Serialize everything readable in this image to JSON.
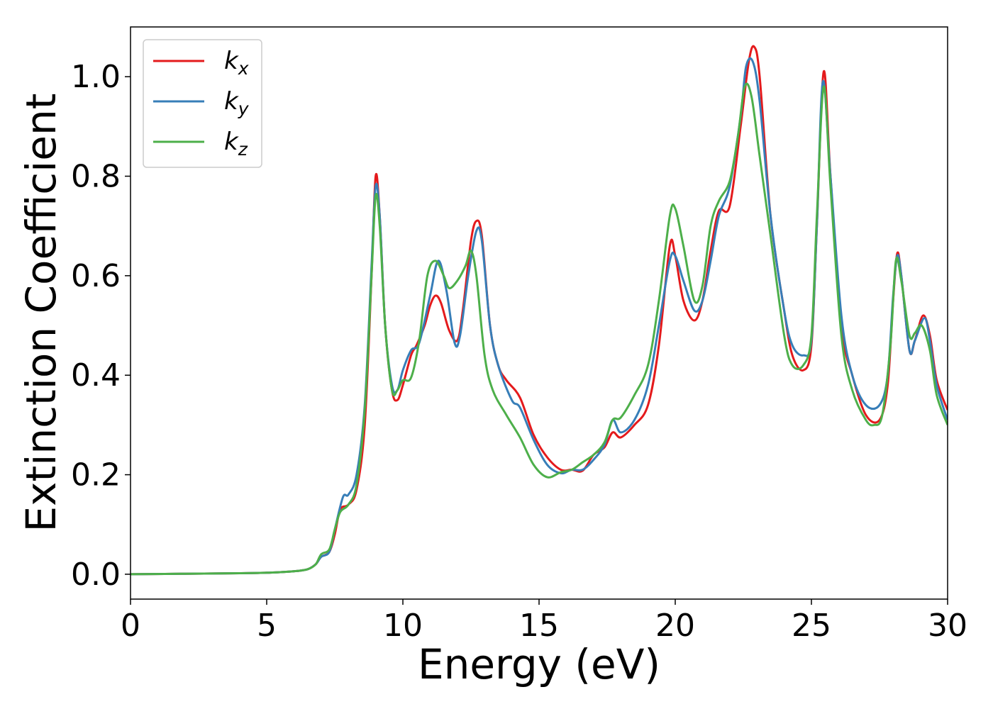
{
  "chart_data": {
    "type": "line",
    "title": "",
    "xlabel": "Energy (eV)",
    "ylabel": "Extinction Coefficient",
    "xlim": [
      0,
      30
    ],
    "ylim": [
      -0.05,
      1.1
    ],
    "xticks": [
      0,
      5,
      10,
      15,
      20,
      25,
      30
    ],
    "yticks": [
      0.0,
      0.2,
      0.4,
      0.6,
      0.8,
      1.0
    ],
    "xtick_labels": [
      "0",
      "5",
      "10",
      "15",
      "20",
      "25",
      "30"
    ],
    "ytick_labels": [
      "0.0",
      "0.2",
      "0.4",
      "0.6",
      "0.8",
      "1.0"
    ],
    "grid": false,
    "legend_position": "top-left",
    "series": [
      {
        "name": "k",
        "subscript": "x",
        "color": "#e41a1c",
        "points": [
          [
            0,
            0.0
          ],
          [
            2,
            0.001
          ],
          [
            4,
            0.002
          ],
          [
            5,
            0.003
          ],
          [
            6,
            0.006
          ],
          [
            6.5,
            0.01
          ],
          [
            6.8,
            0.02
          ],
          [
            7.0,
            0.035
          ],
          [
            7.3,
            0.045
          ],
          [
            7.5,
            0.08
          ],
          [
            7.7,
            0.13
          ],
          [
            8.0,
            0.14
          ],
          [
            8.3,
            0.17
          ],
          [
            8.6,
            0.3
          ],
          [
            8.85,
            0.6
          ],
          [
            9.0,
            0.8
          ],
          [
            9.15,
            0.72
          ],
          [
            9.35,
            0.5
          ],
          [
            9.6,
            0.37
          ],
          [
            9.8,
            0.35
          ],
          [
            10.0,
            0.38
          ],
          [
            10.3,
            0.44
          ],
          [
            10.5,
            0.46
          ],
          [
            10.8,
            0.5
          ],
          [
            11.0,
            0.54
          ],
          [
            11.2,
            0.56
          ],
          [
            11.4,
            0.545
          ],
          [
            11.7,
            0.49
          ],
          [
            12.0,
            0.47
          ],
          [
            12.2,
            0.53
          ],
          [
            12.5,
            0.67
          ],
          [
            12.7,
            0.71
          ],
          [
            12.9,
            0.68
          ],
          [
            13.2,
            0.5
          ],
          [
            13.5,
            0.42
          ],
          [
            13.8,
            0.39
          ],
          [
            14.3,
            0.355
          ],
          [
            14.8,
            0.28
          ],
          [
            15.3,
            0.235
          ],
          [
            15.8,
            0.21
          ],
          [
            16.2,
            0.21
          ],
          [
            16.6,
            0.208
          ],
          [
            17.0,
            0.24
          ],
          [
            17.4,
            0.255
          ],
          [
            17.7,
            0.285
          ],
          [
            18.0,
            0.275
          ],
          [
            18.5,
            0.3
          ],
          [
            19.0,
            0.34
          ],
          [
            19.4,
            0.46
          ],
          [
            19.8,
            0.66
          ],
          [
            20.0,
            0.64
          ],
          [
            20.3,
            0.55
          ],
          [
            20.7,
            0.51
          ],
          [
            21.0,
            0.55
          ],
          [
            21.3,
            0.65
          ],
          [
            21.6,
            0.73
          ],
          [
            22.0,
            0.74
          ],
          [
            22.4,
            0.9
          ],
          [
            22.7,
            1.03
          ],
          [
            22.9,
            1.06
          ],
          [
            23.1,
            1.0
          ],
          [
            23.5,
            0.72
          ],
          [
            24.0,
            0.53
          ],
          [
            24.3,
            0.44
          ],
          [
            24.7,
            0.41
          ],
          [
            25.0,
            0.46
          ],
          [
            25.2,
            0.7
          ],
          [
            25.45,
            1.01
          ],
          [
            25.7,
            0.8
          ],
          [
            26.1,
            0.5
          ],
          [
            26.5,
            0.4
          ],
          [
            27.0,
            0.32
          ],
          [
            27.5,
            0.31
          ],
          [
            27.8,
            0.38
          ],
          [
            28.0,
            0.55
          ],
          [
            28.15,
            0.645
          ],
          [
            28.3,
            0.6
          ],
          [
            28.6,
            0.45
          ],
          [
            28.8,
            0.47
          ],
          [
            29.1,
            0.52
          ],
          [
            29.35,
            0.48
          ],
          [
            29.6,
            0.39
          ],
          [
            30.0,
            0.33
          ]
        ]
      },
      {
        "name": "k",
        "subscript": "y",
        "color": "#377eb8",
        "points": [
          [
            0,
            0.0
          ],
          [
            2,
            0.001
          ],
          [
            4,
            0.002
          ],
          [
            5,
            0.003
          ],
          [
            6,
            0.006
          ],
          [
            6.5,
            0.01
          ],
          [
            6.8,
            0.02
          ],
          [
            7.0,
            0.035
          ],
          [
            7.3,
            0.045
          ],
          [
            7.5,
            0.09
          ],
          [
            7.8,
            0.155
          ],
          [
            8.0,
            0.16
          ],
          [
            8.3,
            0.2
          ],
          [
            8.6,
            0.34
          ],
          [
            8.85,
            0.62
          ],
          [
            9.0,
            0.78
          ],
          [
            9.15,
            0.72
          ],
          [
            9.35,
            0.5
          ],
          [
            9.6,
            0.38
          ],
          [
            9.8,
            0.37
          ],
          [
            10.0,
            0.41
          ],
          [
            10.3,
            0.45
          ],
          [
            10.6,
            0.465
          ],
          [
            11.0,
            0.56
          ],
          [
            11.3,
            0.63
          ],
          [
            11.6,
            0.57
          ],
          [
            11.9,
            0.465
          ],
          [
            12.1,
            0.48
          ],
          [
            12.4,
            0.6
          ],
          [
            12.7,
            0.69
          ],
          [
            12.9,
            0.67
          ],
          [
            13.2,
            0.5
          ],
          [
            13.5,
            0.42
          ],
          [
            14.0,
            0.35
          ],
          [
            14.3,
            0.335
          ],
          [
            14.8,
            0.27
          ],
          [
            15.3,
            0.22
          ],
          [
            15.8,
            0.203
          ],
          [
            16.2,
            0.21
          ],
          [
            16.6,
            0.21
          ],
          [
            17.0,
            0.23
          ],
          [
            17.4,
            0.26
          ],
          [
            17.7,
            0.31
          ],
          [
            18.0,
            0.285
          ],
          [
            18.5,
            0.31
          ],
          [
            19.0,
            0.38
          ],
          [
            19.4,
            0.5
          ],
          [
            19.8,
            0.63
          ],
          [
            20.0,
            0.64
          ],
          [
            20.3,
            0.59
          ],
          [
            20.7,
            0.53
          ],
          [
            21.0,
            0.55
          ],
          [
            21.3,
            0.63
          ],
          [
            21.6,
            0.72
          ],
          [
            22.0,
            0.78
          ],
          [
            22.4,
            0.92
          ],
          [
            22.6,
            1.02
          ],
          [
            22.85,
            1.03
          ],
          [
            23.1,
            0.95
          ],
          [
            23.5,
            0.72
          ],
          [
            24.0,
            0.53
          ],
          [
            24.3,
            0.46
          ],
          [
            24.7,
            0.44
          ],
          [
            25.0,
            0.47
          ],
          [
            25.2,
            0.7
          ],
          [
            25.42,
            0.99
          ],
          [
            25.7,
            0.8
          ],
          [
            26.1,
            0.52
          ],
          [
            26.5,
            0.4
          ],
          [
            27.0,
            0.34
          ],
          [
            27.5,
            0.34
          ],
          [
            27.8,
            0.4
          ],
          [
            28.0,
            0.56
          ],
          [
            28.15,
            0.64
          ],
          [
            28.3,
            0.6
          ],
          [
            28.6,
            0.45
          ],
          [
            28.8,
            0.47
          ],
          [
            29.15,
            0.515
          ],
          [
            29.35,
            0.47
          ],
          [
            29.6,
            0.38
          ],
          [
            30.0,
            0.31
          ]
        ]
      },
      {
        "name": "k",
        "subscript": "z",
        "color": "#4daf4a",
        "points": [
          [
            0,
            0.0
          ],
          [
            2,
            0.001
          ],
          [
            4,
            0.002
          ],
          [
            5,
            0.003
          ],
          [
            6,
            0.006
          ],
          [
            6.5,
            0.01
          ],
          [
            6.8,
            0.02
          ],
          [
            7.0,
            0.04
          ],
          [
            7.3,
            0.05
          ],
          [
            7.5,
            0.09
          ],
          [
            7.7,
            0.125
          ],
          [
            8.0,
            0.14
          ],
          [
            8.3,
            0.18
          ],
          [
            8.6,
            0.33
          ],
          [
            8.85,
            0.6
          ],
          [
            9.0,
            0.76
          ],
          [
            9.15,
            0.7
          ],
          [
            9.35,
            0.5
          ],
          [
            9.6,
            0.37
          ],
          [
            9.8,
            0.37
          ],
          [
            10.0,
            0.39
          ],
          [
            10.3,
            0.395
          ],
          [
            10.6,
            0.47
          ],
          [
            10.9,
            0.6
          ],
          [
            11.2,
            0.63
          ],
          [
            11.5,
            0.6
          ],
          [
            11.7,
            0.575
          ],
          [
            12.0,
            0.59
          ],
          [
            12.3,
            0.62
          ],
          [
            12.5,
            0.65
          ],
          [
            12.7,
            0.6
          ],
          [
            13.0,
            0.44
          ],
          [
            13.3,
            0.37
          ],
          [
            13.8,
            0.32
          ],
          [
            14.3,
            0.275
          ],
          [
            14.8,
            0.22
          ],
          [
            15.3,
            0.195
          ],
          [
            15.8,
            0.205
          ],
          [
            16.2,
            0.21
          ],
          [
            16.6,
            0.225
          ],
          [
            17.0,
            0.24
          ],
          [
            17.4,
            0.265
          ],
          [
            17.7,
            0.31
          ],
          [
            18.0,
            0.315
          ],
          [
            18.5,
            0.36
          ],
          [
            19.0,
            0.42
          ],
          [
            19.4,
            0.55
          ],
          [
            19.8,
            0.72
          ],
          [
            20.0,
            0.735
          ],
          [
            20.3,
            0.66
          ],
          [
            20.7,
            0.55
          ],
          [
            21.0,
            0.58
          ],
          [
            21.3,
            0.7
          ],
          [
            21.6,
            0.75
          ],
          [
            22.0,
            0.79
          ],
          [
            22.3,
            0.88
          ],
          [
            22.55,
            0.98
          ],
          [
            22.8,
            0.96
          ],
          [
            23.1,
            0.84
          ],
          [
            23.5,
            0.68
          ],
          [
            24.0,
            0.48
          ],
          [
            24.3,
            0.42
          ],
          [
            24.7,
            0.42
          ],
          [
            25.0,
            0.48
          ],
          [
            25.2,
            0.72
          ],
          [
            25.45,
            0.98
          ],
          [
            25.7,
            0.78
          ],
          [
            26.1,
            0.48
          ],
          [
            26.5,
            0.37
          ],
          [
            27.0,
            0.31
          ],
          [
            27.3,
            0.3
          ],
          [
            27.6,
            0.32
          ],
          [
            27.9,
            0.46
          ],
          [
            28.1,
            0.63
          ],
          [
            28.3,
            0.59
          ],
          [
            28.6,
            0.48
          ],
          [
            28.8,
            0.485
          ],
          [
            29.05,
            0.5
          ],
          [
            29.35,
            0.45
          ],
          [
            29.6,
            0.36
          ],
          [
            30.0,
            0.3
          ]
        ]
      }
    ]
  }
}
